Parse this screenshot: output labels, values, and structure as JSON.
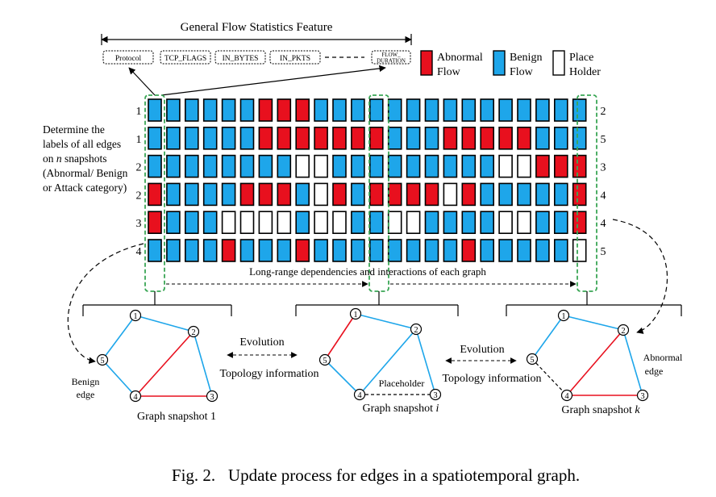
{
  "header": {
    "title": "General Flow Statistics Feature",
    "features": [
      "Protocol",
      "TCP_FLAGS",
      "IN_BYTES",
      "IN_PKTS",
      "FLOW_DURATION"
    ]
  },
  "legend": [
    {
      "label_line1": "Abnormal",
      "label_line2": "Flow",
      "color": "#e8101e"
    },
    {
      "label_line1": "Benign",
      "label_line2": "Flow",
      "color": "#1ea6ea"
    },
    {
      "label_line1": "Place",
      "label_line2": "Holder",
      "color": "#ffffff"
    }
  ],
  "colors": {
    "abnormal": "#e8101e",
    "benign": "#1ea6ea",
    "placeholder": "#ffffff",
    "dash_box": "#3aa655"
  },
  "side_note": {
    "lines": [
      "Determine the",
      "labels of all edges",
      "on n snapshots",
      "(Abnormal/ Benign",
      "or Attack category)"
    ]
  },
  "matrix": {
    "left_labels": [
      "1",
      "1",
      "2",
      "2",
      "3",
      "4"
    ],
    "right_labels": [
      "2",
      "5",
      "3",
      "4",
      "4",
      "5"
    ],
    "rows": [
      "BBBBBBRRRBBBBBBBBBBBBBBB",
      "BBBBBBRRRRRRRBBBRRRRRBBB",
      "BBBBBBBBPPBBBBBBBBBPPRRR",
      "RBBBBRRRBPRBRRRRPRBBBBBR",
      "RBBBPPPPBPPBBPPBBBBPPBBR",
      "BBBBRBBBRBBBBBBBBRBBBBBP"
    ]
  },
  "long_range_text": "Long-range dependencies and interactions of each graph",
  "graphs": [
    {
      "caption": "Graph snapshot 1",
      "nodes": [
        "1",
        "2",
        "3",
        "4",
        "5"
      ]
    },
    {
      "caption": "Graph snapshot ",
      "caption_var": "i",
      "nodes": [
        "1",
        "2",
        "3",
        "4",
        "5"
      ]
    },
    {
      "caption": "Graph snapshot ",
      "caption_var": "k",
      "nodes": [
        "1",
        "2",
        "3",
        "4",
        "5"
      ]
    }
  ],
  "annotations": {
    "evolution_1": "Evolution",
    "topology_1": "Topology information",
    "evolution_2": "Evolution",
    "topology_2": "Topology information",
    "benign_edge": [
      "Benign",
      "edge"
    ],
    "placeholder": "Placeholder",
    "abnormal_edge": [
      "Abnormal",
      "edge"
    ]
  },
  "figure_caption": "Fig. 2.   Update process for edges in a spatiotemporal graph."
}
